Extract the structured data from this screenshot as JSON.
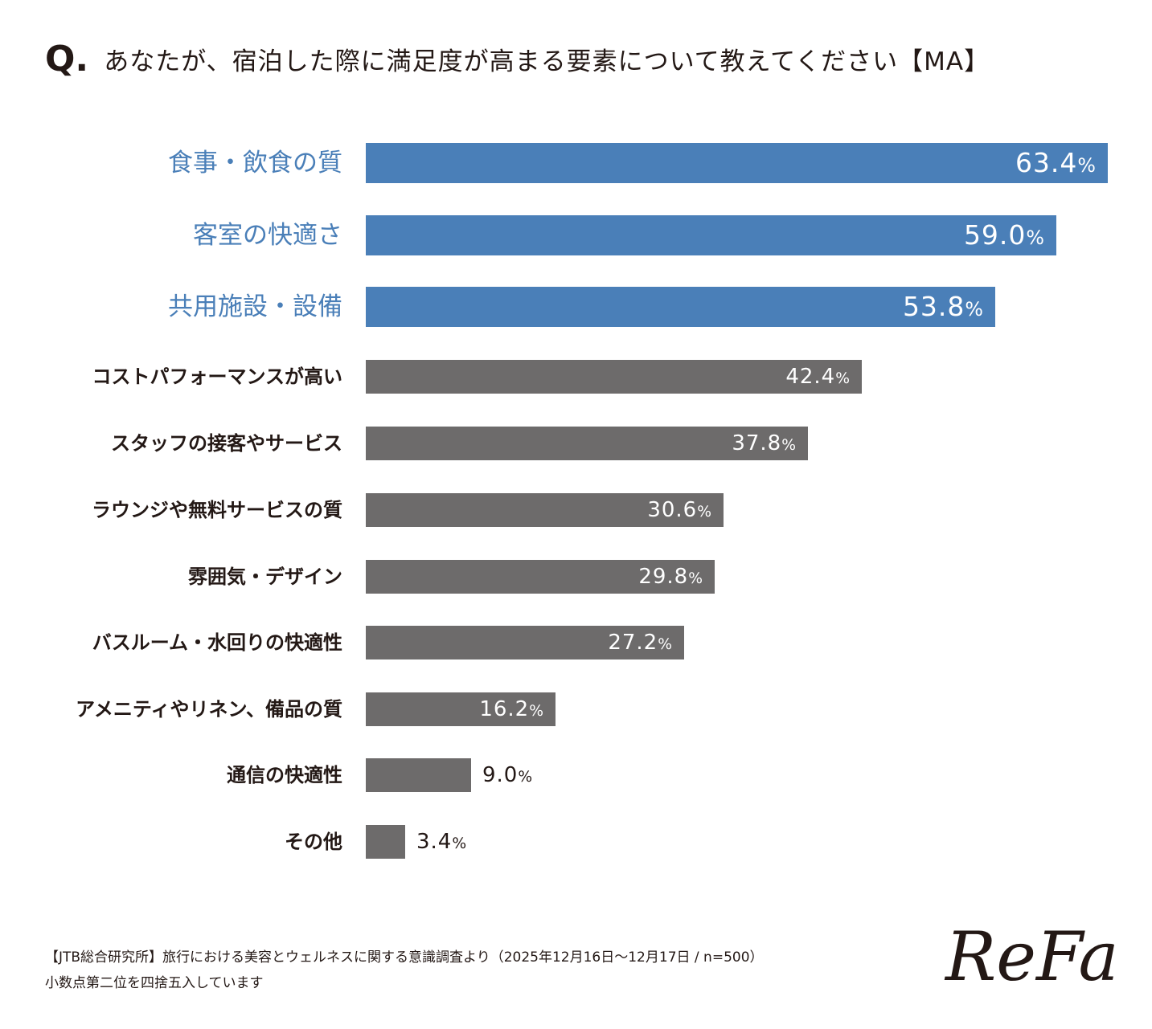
{
  "question": {
    "mark": "Q.",
    "text": "あなたが、宿泊した際に満足度が高まる要素について教えてください【MA】"
  },
  "chart_data": {
    "type": "bar",
    "orientation": "horizontal",
    "title": "あなたが、宿泊した際に満足度が高まる要素について教えてください【MA】",
    "categories": [
      "食事・飲食の質",
      "客室の快適さ",
      "共用施設・設備",
      "コストパフォーマンスが高い",
      "スタッフの接客やサービス",
      "ラウンジや無料サービスの質",
      "雰囲気・デザイン",
      "バスルーム・水回りの快適性",
      "アメニティやリネン、備品の質",
      "通信の快適性",
      "その他"
    ],
    "values": [
      63.4,
      59.0,
      53.8,
      42.4,
      37.8,
      30.6,
      29.8,
      27.2,
      16.2,
      9.0,
      3.4
    ],
    "value_labels": [
      "63.4",
      "59.0",
      "53.8",
      "42.4",
      "37.8",
      "30.6",
      "29.8",
      "27.2",
      "16.2",
      "9.0",
      "3.4"
    ],
    "unit": "%",
    "highlighted": [
      true,
      true,
      true,
      false,
      false,
      false,
      false,
      false,
      false,
      false,
      false
    ],
    "xlim": [
      0,
      63.4
    ],
    "grid": false,
    "colors": {
      "highlight": "#4a7fb8",
      "default": "#6d6b6b"
    }
  },
  "footer": {
    "source": "【JTB総合研究所】旅行における美容とウェルネスに関する意識調査より（2025年12月16日〜12月17日 / n=500）",
    "note": "小数点第二位を四捨五入しています"
  },
  "logo": {
    "text": "ReFa"
  }
}
